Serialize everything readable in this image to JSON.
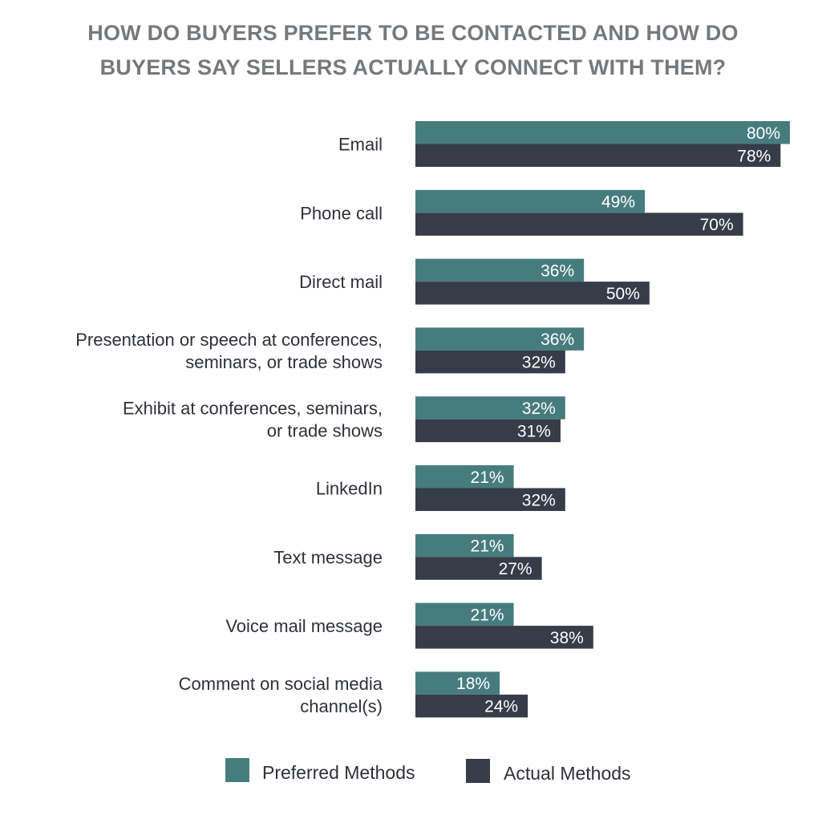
{
  "colors": {
    "title": "#76797c",
    "preferred": "#477c7e",
    "actual": "#363c48",
    "label": "#2e3138",
    "value_text": "#ffffff"
  },
  "chart_data": {
    "type": "bar",
    "orientation": "horizontal",
    "title_lines": [
      "HOW DO BUYERS PREFER TO BE CONTACTED AND HOW DO",
      "BUYERS SAY SELLERS ACTUALLY CONNECT WITH THEM?"
    ],
    "categories": [
      [
        "Email"
      ],
      [
        "Phone call"
      ],
      [
        "Direct mail"
      ],
      [
        "Presentation or speech at conferences,",
        "seminars, or trade shows"
      ],
      [
        "Exhibit at conferences, seminars,",
        "or trade shows"
      ],
      [
        "LinkedIn"
      ],
      [
        "Text message"
      ],
      [
        "Voice mail message"
      ],
      [
        "Comment on social media",
        "channel(s)"
      ]
    ],
    "series": [
      {
        "name": "Preferred Methods",
        "values": [
          80,
          49,
          36,
          36,
          32,
          21,
          21,
          21,
          18
        ],
        "labels": [
          "80%",
          "49%",
          "36%",
          "36%",
          "32%",
          "21%",
          "21%",
          "21%",
          "18%"
        ]
      },
      {
        "name": "Actual Methods",
        "values": [
          78,
          70,
          50,
          32,
          31,
          32,
          27,
          38,
          24
        ],
        "labels": [
          "78%",
          "70%",
          "50%",
          "32%",
          "31%",
          "32%",
          "27%",
          "38%",
          "24%"
        ]
      }
    ],
    "xlim": [
      0,
      80
    ],
    "grid": false,
    "legend_position": "bottom",
    "data_labels": "inside-end"
  }
}
